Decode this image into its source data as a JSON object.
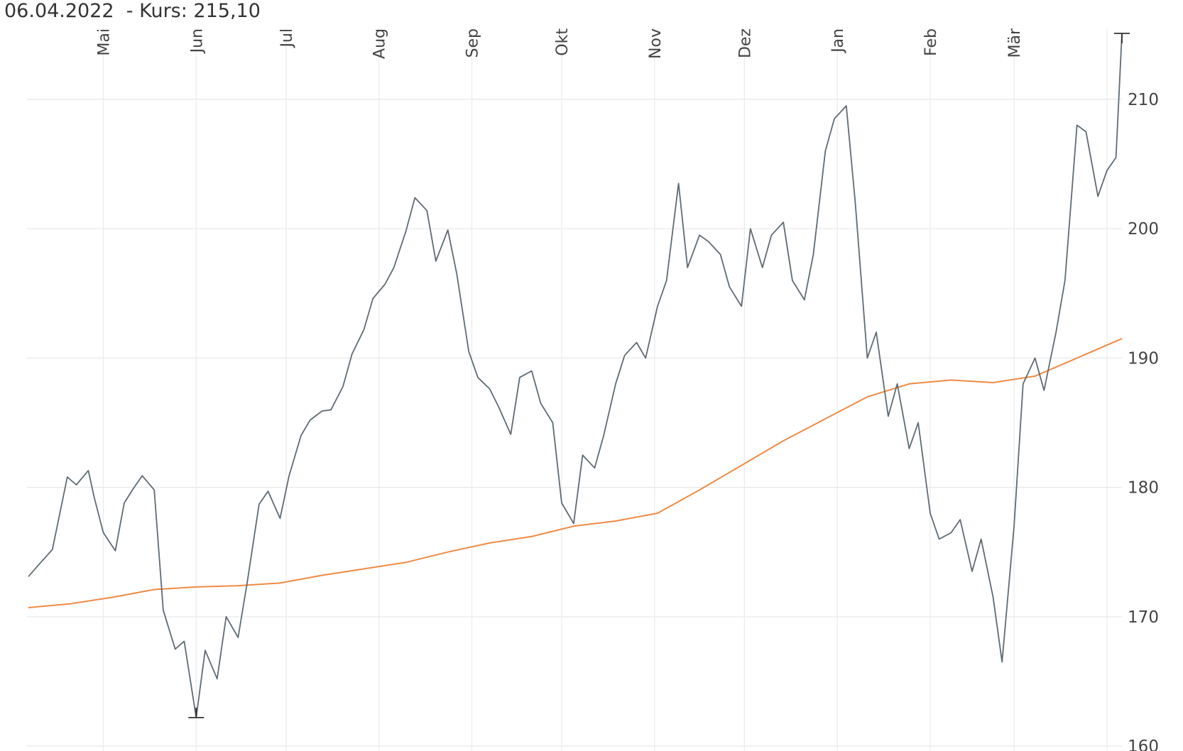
{
  "header": {
    "date": "06.04.2022",
    "price_label": " - Kurs: 215,10"
  },
  "chart_data": {
    "type": "line",
    "x_tick_labels": [
      "Mai",
      "Jun",
      "Jul",
      "Aug",
      "Sep",
      "Okt",
      "Nov",
      "Dez",
      "Jan",
      "Feb",
      "Mär"
    ],
    "y_tick_labels": [
      "210",
      "200",
      "190",
      "180",
      "170",
      "160"
    ],
    "y_ticks": [
      210,
      200,
      190,
      180,
      170,
      160
    ],
    "ylim": [
      160,
      215
    ],
    "x_domain": [
      "2021-04-06",
      "2022-04-06"
    ],
    "month_starts": [
      "2021-05-01",
      "2021-06-01",
      "2021-07-01",
      "2021-08-01",
      "2021-09-01",
      "2021-10-01",
      "2021-11-01",
      "2021-12-01",
      "2022-01-01",
      "2022-02-01",
      "2022-03-01",
      "2022-04-01"
    ],
    "grid": true,
    "series": [
      {
        "color": "#5f6b73",
        "x": [
          "2021-04-06",
          "2021-04-09",
          "2021-04-14",
          "2021-04-19",
          "2021-04-22",
          "2021-04-26",
          "2021-04-28",
          "2021-05-01",
          "2021-05-05",
          "2021-05-08",
          "2021-05-11",
          "2021-05-14",
          "2021-05-18",
          "2021-05-21",
          "2021-05-25",
          "2021-05-28",
          "2021-06-01",
          "2021-06-04",
          "2021-06-08",
          "2021-06-11",
          "2021-06-15",
          "2021-06-18",
          "2021-06-22",
          "2021-06-25",
          "2021-06-29",
          "2021-07-02",
          "2021-07-06",
          "2021-07-09",
          "2021-07-13",
          "2021-07-16",
          "2021-07-20",
          "2021-07-23",
          "2021-07-27",
          "2021-07-30",
          "2021-08-03",
          "2021-08-06",
          "2021-08-10",
          "2021-08-13",
          "2021-08-17",
          "2021-08-20",
          "2021-08-24",
          "2021-08-27",
          "2021-08-31",
          "2021-09-03",
          "2021-09-07",
          "2021-09-10",
          "2021-09-14",
          "2021-09-17",
          "2021-09-21",
          "2021-09-24",
          "2021-09-28",
          "2021-10-01",
          "2021-10-05",
          "2021-10-08",
          "2021-10-12",
          "2021-10-15",
          "2021-10-19",
          "2021-10-22",
          "2021-10-26",
          "2021-10-29",
          "2021-11-02",
          "2021-11-05",
          "2021-11-09",
          "2021-11-12",
          "2021-11-16",
          "2021-11-19",
          "2021-11-23",
          "2021-11-26",
          "2021-11-30",
          "2021-12-03",
          "2021-12-07",
          "2021-12-10",
          "2021-12-14",
          "2021-12-17",
          "2021-12-21",
          "2021-12-24",
          "2021-12-28",
          "2021-12-31",
          "2022-01-04",
          "2022-01-07",
          "2022-01-11",
          "2022-01-14",
          "2022-01-18",
          "2022-01-21",
          "2022-01-25",
          "2022-01-28",
          "2022-02-01",
          "2022-02-04",
          "2022-02-08",
          "2022-02-11",
          "2022-02-15",
          "2022-02-18",
          "2022-02-22",
          "2022-02-25",
          "2022-03-01",
          "2022-03-04",
          "2022-03-08",
          "2022-03-11",
          "2022-03-15",
          "2022-03-18",
          "2022-03-22",
          "2022-03-25",
          "2022-03-29",
          "2022-04-01",
          "2022-04-04",
          "2022-04-06"
        ],
        "y": [
          173.1,
          173.9,
          175.2,
          180.8,
          180.2,
          181.3,
          179.2,
          176.5,
          175.1,
          178.8,
          179.9,
          180.9,
          179.8,
          170.5,
          167.5,
          168.1,
          162.2,
          167.4,
          165.2,
          170.0,
          168.4,
          172.6,
          178.7,
          179.7,
          177.6,
          180.9,
          184.0,
          185.2,
          185.9,
          186.0,
          187.8,
          190.3,
          192.2,
          194.6,
          195.7,
          197.0,
          199.8,
          202.4,
          201.4,
          197.5,
          199.9,
          196.5,
          190.5,
          188.5,
          187.6,
          186.2,
          184.1,
          188.5,
          189.0,
          186.5,
          185.0,
          178.8,
          177.2,
          182.5,
          181.5,
          184.0,
          188.0,
          190.2,
          191.2,
          190.0,
          194.0,
          196.0,
          203.5,
          197.0,
          199.5,
          199.0,
          198.0,
          195.5,
          194.0,
          200.0,
          197.0,
          199.5,
          200.5,
          196.0,
          194.5,
          198.0,
          206.0,
          208.5,
          209.5,
          202.0,
          190.0,
          192.0,
          185.5,
          188.0,
          183.0,
          185.0,
          178.0,
          176.0,
          176.5,
          177.5,
          173.5,
          176.0,
          171.5,
          166.5,
          177.0,
          188.0,
          190.0,
          187.5,
          192.0,
          196.0,
          208.0,
          207.5,
          202.5,
          204.5,
          205.5,
          215.1
        ]
      },
      {
        "color": "#ef8a45",
        "x": [
          "2021-04-06",
          "2021-04-20",
          "2021-05-04",
          "2021-05-18",
          "2021-06-01",
          "2021-06-15",
          "2021-06-29",
          "2021-07-13",
          "2021-07-27",
          "2021-08-10",
          "2021-08-24",
          "2021-09-07",
          "2021-09-21",
          "2021-10-05",
          "2021-10-19",
          "2021-11-02",
          "2021-11-16",
          "2021-11-30",
          "2021-12-14",
          "2021-12-28",
          "2022-01-11",
          "2022-01-25",
          "2022-02-08",
          "2022-02-22",
          "2022-03-08",
          "2022-03-22",
          "2022-04-06"
        ],
        "y": [
          170.7,
          171.0,
          171.5,
          172.1,
          172.3,
          172.4,
          172.6,
          173.2,
          173.7,
          174.2,
          175.0,
          175.7,
          176.2,
          177.0,
          177.4,
          178.0,
          179.8,
          181.7,
          183.6,
          185.3,
          187.0,
          188.0,
          188.3,
          188.1,
          188.6,
          190.0,
          191.5
        ]
      }
    ],
    "annotations": [
      {
        "type": "min-marker",
        "x": "2021-06-01",
        "y": 162.2
      },
      {
        "type": "max-marker",
        "x": "2022-04-06",
        "y": 215.1
      }
    ]
  }
}
